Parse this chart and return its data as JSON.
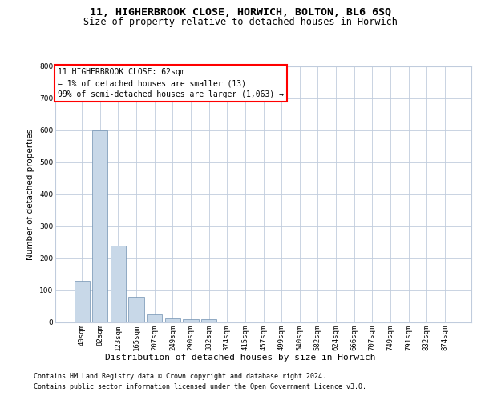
{
  "title1": "11, HIGHERBROOK CLOSE, HORWICH, BOLTON, BL6 6SQ",
  "title2": "Size of property relative to detached houses in Horwich",
  "xlabel": "Distribution of detached houses by size in Horwich",
  "ylabel": "Number of detached properties",
  "bin_labels": [
    "40sqm",
    "82sqm",
    "123sqm",
    "165sqm",
    "207sqm",
    "249sqm",
    "290sqm",
    "332sqm",
    "374sqm",
    "415sqm",
    "457sqm",
    "499sqm",
    "540sqm",
    "582sqm",
    "624sqm",
    "666sqm",
    "707sqm",
    "749sqm",
    "791sqm",
    "832sqm",
    "874sqm"
  ],
  "bar_values": [
    130,
    600,
    238,
    80,
    25,
    12,
    10,
    10,
    0,
    0,
    0,
    0,
    0,
    0,
    0,
    0,
    0,
    0,
    0,
    0,
    0
  ],
  "bar_color": "#c8d8e8",
  "bar_edge_color": "#7090b0",
  "ylim": [
    0,
    800
  ],
  "yticks": [
    0,
    100,
    200,
    300,
    400,
    500,
    600,
    700,
    800
  ],
  "annotation_line1": "11 HIGHERBROOK CLOSE: 62sqm",
  "annotation_line2": "← 1% of detached houses are smaller (13)",
  "annotation_line3": "99% of semi-detached houses are larger (1,063) →",
  "footer1": "Contains HM Land Registry data © Crown copyright and database right 2024.",
  "footer2": "Contains public sector information licensed under the Open Government Licence v3.0.",
  "background_color": "#ffffff",
  "grid_color": "#c0ccdd",
  "title1_fontsize": 9.5,
  "title2_fontsize": 8.5,
  "axis_label_fontsize": 7.5,
  "tick_fontsize": 6.5,
  "annotation_fontsize": 7,
  "footer_fontsize": 6
}
